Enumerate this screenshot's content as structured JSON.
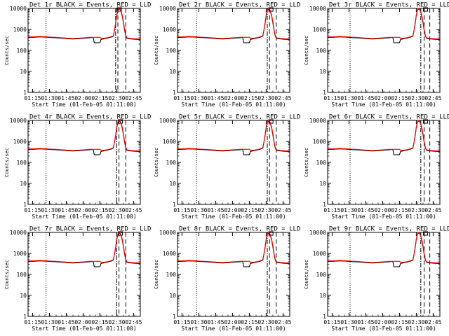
{
  "chart_data": {
    "type": "line",
    "layout_rows": 3,
    "layout_cols": 3,
    "ylabel": "Counts/sec",
    "xlabel": "Start Time (01-Feb-05 01:11:00)",
    "x_unit": "minutes after 01:11:00",
    "xlim": [
      0,
      100
    ],
    "ylim": [
      1,
      10000
    ],
    "yscale": "log",
    "x_ticks": [
      {
        "x": 4,
        "label": "01:15"
      },
      {
        "x": 19,
        "label": "01:30"
      },
      {
        "x": 34,
        "label": "01:45"
      },
      {
        "x": 49,
        "label": "02:00"
      },
      {
        "x": 64,
        "label": "02:15"
      },
      {
        "x": 79,
        "label": "02:30"
      },
      {
        "x": 94,
        "label": "02:45"
      }
    ],
    "y_ticks": [
      {
        "y": 1,
        "label": "1"
      },
      {
        "y": 10,
        "label": "10"
      },
      {
        "y": 100,
        "label": "100"
      },
      {
        "y": 1000,
        "label": "1000"
      },
      {
        "y": 10000,
        "label": "10000"
      }
    ],
    "legend_text": "BLACK = Events, RED = LLD",
    "series_colors": {
      "events": "#000000",
      "lld": "#ff0000"
    },
    "panels": [
      {
        "title": "Det 1r BLACK = Events, RED = LLD",
        "dotted_x": 16,
        "dashdot_x": 78,
        "dashed_x": [
          80,
          87
        ]
      },
      {
        "title": "Det 2r BLACK = Events, RED = LLD",
        "dotted_x": 17,
        "dashdot_x": 80,
        "dashed_x": [
          82,
          88
        ]
      },
      {
        "title": "Det 3r BLACK = Events, RED = LLD",
        "dotted_x": 20,
        "dashdot_x": 83,
        "dashed_x": [
          86,
          91
        ]
      },
      {
        "title": "Det 4r BLACK = Events, RED = LLD",
        "dotted_x": 16,
        "dashdot_x": 79,
        "dashed_x": [
          81,
          87
        ]
      },
      {
        "title": "Det 5r BLACK = Events, RED = LLD",
        "dotted_x": 17,
        "dashdot_x": 80,
        "dashed_x": [
          82,
          88
        ]
      },
      {
        "title": "Det 6r BLACK = Events, RED = LLD",
        "dotted_x": 20,
        "dashdot_x": 83,
        "dashed_x": [
          86,
          91
        ]
      },
      {
        "title": "Det 7r BLACK = Events, RED = LLD",
        "dotted_x": 16,
        "dashdot_x": 79,
        "dashed_x": [
          81,
          87
        ]
      },
      {
        "title": "Det 8r BLACK = Events, RED = LLD",
        "dotted_x": 17,
        "dashdot_x": 80,
        "dashed_x": [
          82,
          88
        ]
      },
      {
        "title": "Det 9r BLACK = Events, RED = LLD",
        "dotted_x": 20,
        "dashdot_x": 83,
        "dashed_x": [
          86,
          91
        ]
      }
    ],
    "series": [
      {
        "key": "events",
        "points": [
          [
            0,
            420
          ],
          [
            5,
            420
          ],
          [
            10,
            440
          ],
          [
            15,
            430
          ],
          [
            20,
            410
          ],
          [
            25,
            400
          ],
          [
            30,
            380
          ],
          [
            35,
            360
          ],
          [
            40,
            350
          ],
          [
            45,
            360
          ],
          [
            50,
            380
          ],
          [
            55,
            400
          ],
          [
            58,
            420
          ],
          [
            59,
            230
          ],
          [
            64,
            230
          ],
          [
            65,
            330
          ],
          [
            68,
            360
          ],
          [
            70,
            380
          ],
          [
            72,
            400
          ],
          [
            74,
            430
          ],
          [
            76,
            480
          ],
          [
            77,
            900
          ],
          [
            78,
            1800
          ],
          [
            79,
            4500
          ],
          [
            80,
            8000
          ],
          [
            81,
            9500
          ],
          [
            82,
            9000
          ],
          [
            83,
            6500
          ],
          [
            84,
            4000
          ],
          [
            85,
            2000
          ],
          [
            86,
            900
          ],
          [
            87,
            500
          ],
          [
            88,
            380
          ],
          [
            90,
            360
          ],
          [
            92,
            350
          ],
          [
            95,
            340
          ],
          [
            100,
            330
          ]
        ]
      },
      {
        "key": "lld",
        "points": [
          [
            0,
            440
          ],
          [
            5,
            440
          ],
          [
            10,
            460
          ],
          [
            15,
            450
          ],
          [
            20,
            430
          ],
          [
            25,
            420
          ],
          [
            30,
            400
          ],
          [
            35,
            380
          ],
          [
            40,
            370
          ],
          [
            45,
            380
          ],
          [
            50,
            400
          ],
          [
            55,
            420
          ],
          [
            60,
            420
          ],
          [
            64,
            420
          ],
          [
            65,
            380
          ],
          [
            68,
            380
          ],
          [
            70,
            400
          ],
          [
            72,
            420
          ],
          [
            74,
            450
          ],
          [
            76,
            500
          ],
          [
            77,
            950
          ],
          [
            78,
            2000
          ],
          [
            79,
            5000
          ],
          [
            80,
            8500
          ],
          [
            81,
            10000
          ],
          [
            82,
            9500
          ],
          [
            83,
            7000
          ],
          [
            84,
            4500
          ],
          [
            85,
            2300
          ],
          [
            86,
            1000
          ],
          [
            87,
            550
          ],
          [
            88,
            400
          ],
          [
            90,
            380
          ],
          [
            92,
            370
          ],
          [
            95,
            360
          ],
          [
            100,
            350
          ]
        ]
      }
    ]
  }
}
